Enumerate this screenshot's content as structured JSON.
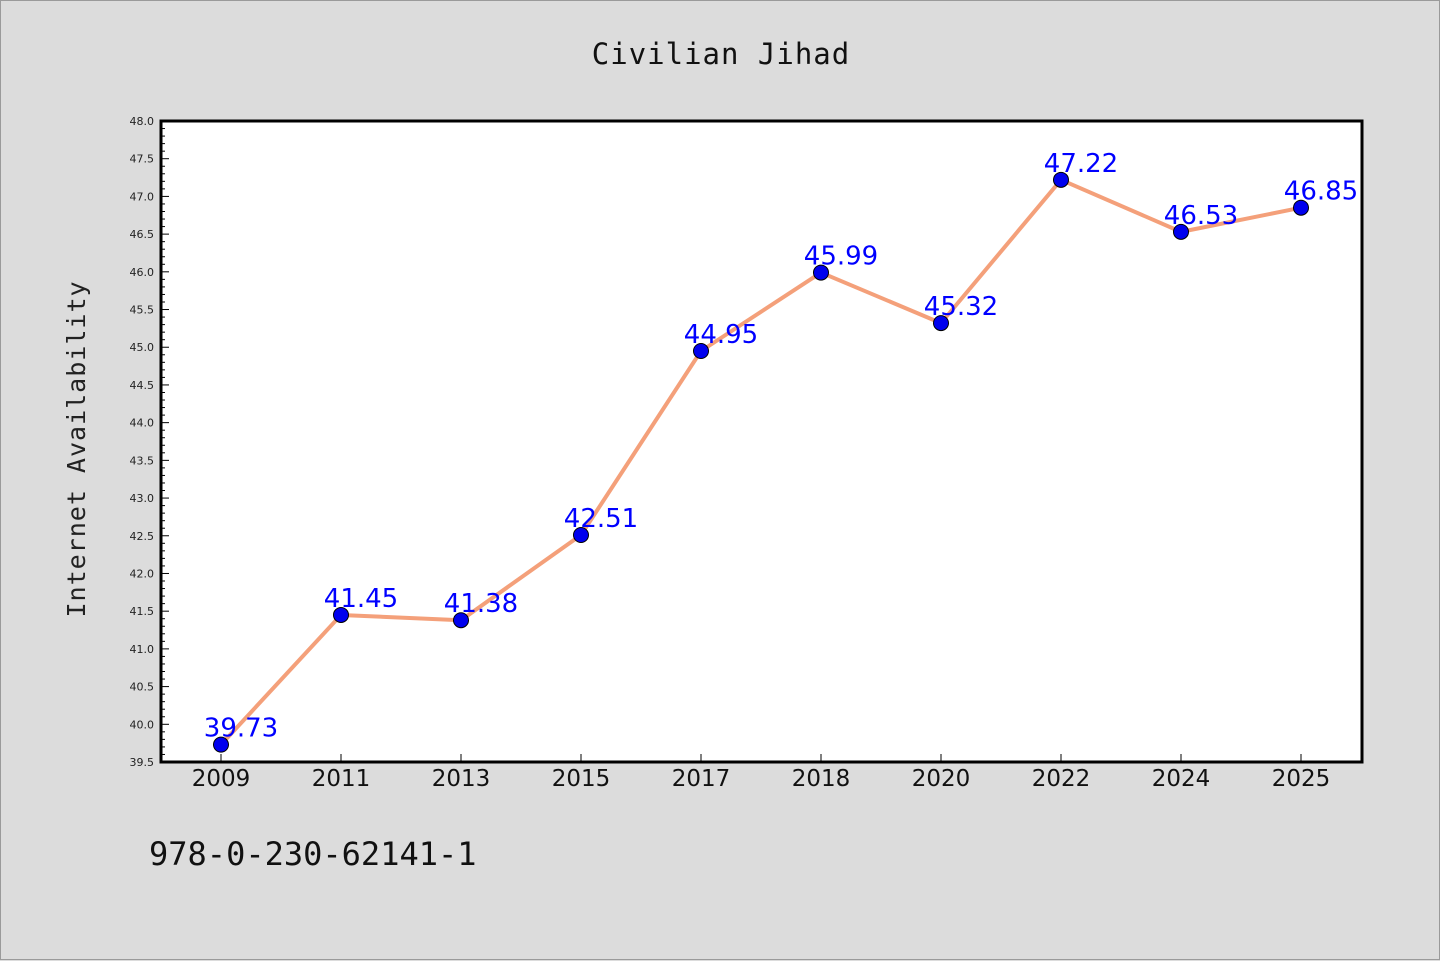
{
  "chart_data": {
    "type": "line",
    "title": "Civilian Jihad",
    "xlabel": "",
    "ylabel": "Internet Availability",
    "categories": [
      "2009",
      "2011",
      "2013",
      "2015",
      "2017",
      "2018",
      "2020",
      "2022",
      "2024",
      "2025"
    ],
    "series": [
      {
        "values": [
          39.73,
          41.45,
          41.38,
          42.51,
          44.95,
          45.99,
          45.32,
          47.22,
          46.53,
          46.85
        ],
        "labels": [
          "39.73",
          "41.45",
          "41.38",
          "42.51",
          "44.95",
          "45.99",
          "45.32",
          "47.22",
          "46.53",
          "46.85"
        ],
        "line_color": "#f4a07a",
        "marker_color": "#0000ee"
      }
    ],
    "ylim": [
      39.5,
      48.0
    ],
    "yticks": [
      "39.5",
      "40.0",
      "40.5",
      "41.0",
      "41.5",
      "42.0",
      "42.5",
      "43.0",
      "43.5",
      "44.0",
      "44.5",
      "45.0",
      "45.5",
      "46.0",
      "46.5",
      "47.0",
      "47.5",
      "48.0"
    ],
    "grid": false,
    "legend": "none",
    "label_color": "#0000ff"
  },
  "footer_text": "978-0-230-62141-1"
}
